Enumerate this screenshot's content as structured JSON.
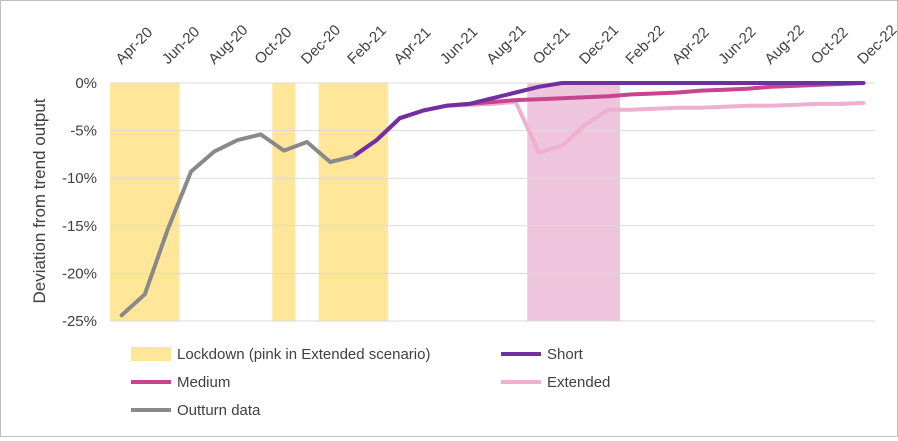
{
  "chart_data": {
    "type": "line",
    "title": "",
    "xlabel": "",
    "ylabel": "Deviation from trend output",
    "ylim": [
      -25,
      0
    ],
    "y_ticks": [
      "0%",
      "-5%",
      "-10%",
      "-15%",
      "-20%",
      "-25%"
    ],
    "x": [
      "Apr-20",
      "May-20",
      "Jun-20",
      "Jul-20",
      "Aug-20",
      "Sep-20",
      "Oct-20",
      "Nov-20",
      "Dec-20",
      "Jan-21",
      "Feb-21",
      "Mar-21",
      "Apr-21",
      "May-21",
      "Jun-21",
      "Jul-21",
      "Aug-21",
      "Sep-21",
      "Oct-21",
      "Nov-21",
      "Dec-21",
      "Jan-22",
      "Feb-22",
      "Mar-22",
      "Apr-22",
      "May-22",
      "Jun-22",
      "Jul-22",
      "Aug-22",
      "Sep-22",
      "Oct-22",
      "Nov-22",
      "Dec-22"
    ],
    "x_tick_labels": [
      "Apr-20",
      "Jun-20",
      "Aug-20",
      "Oct-20",
      "Dec-20",
      "Feb-21",
      "Apr-21",
      "Jun-21",
      "Aug-21",
      "Oct-21",
      "Dec-21",
      "Feb-22",
      "Apr-22",
      "Jun-22",
      "Aug-22",
      "Oct-22",
      "Dec-22"
    ],
    "shaded_periods": [
      {
        "from": "Apr-20",
        "to": "Jun-20",
        "color": "#ffe699"
      },
      {
        "from": "Nov-20",
        "to": "Nov-20",
        "color": "#ffe699"
      },
      {
        "from": "Jan-21",
        "to": "Mar-21",
        "color": "#ffe699"
      },
      {
        "from": "Oct-21",
        "to": "Jan-22",
        "color": "#eec5dc"
      }
    ],
    "series": [
      {
        "name": "Short",
        "color": "#7030a0",
        "values": [
          null,
          null,
          null,
          null,
          null,
          null,
          null,
          null,
          null,
          null,
          -7.7,
          -6.0,
          -3.7,
          -2.9,
          -2.4,
          -2.2,
          -1.6,
          -1.0,
          -0.4,
          0,
          0,
          0,
          0,
          0,
          0,
          0,
          0,
          0,
          0,
          0,
          0,
          0,
          0
        ]
      },
      {
        "name": "Medium",
        "color": "#c9438f",
        "values": [
          null,
          null,
          null,
          null,
          null,
          null,
          null,
          null,
          null,
          null,
          -7.7,
          -6.0,
          -3.7,
          -2.9,
          -2.4,
          -2.2,
          -2.0,
          -1.8,
          -1.7,
          -1.6,
          -1.5,
          -1.4,
          -1.2,
          -1.1,
          -1.0,
          -0.8,
          -0.7,
          -0.6,
          -0.4,
          -0.3,
          -0.2,
          -0.1,
          0
        ]
      },
      {
        "name": "Extended",
        "color": "#eeb0cf",
        "values": [
          null,
          null,
          null,
          null,
          null,
          null,
          null,
          null,
          null,
          null,
          -7.7,
          -6.0,
          -3.7,
          -2.9,
          -2.4,
          -2.3,
          -2.2,
          -2.0,
          -7.3,
          -6.6,
          -4.4,
          -2.8,
          -2.8,
          -2.7,
          -2.6,
          -2.6,
          -2.5,
          -2.4,
          -2.4,
          -2.3,
          -2.2,
          -2.2,
          -2.1
        ]
      },
      {
        "name": "Outturn data",
        "color": "#898989",
        "values": [
          -24.4,
          -22.2,
          -15.3,
          -9.3,
          -7.2,
          -6.0,
          -5.4,
          -7.1,
          -6.2,
          -8.3,
          -7.7,
          null,
          null,
          null,
          null,
          null,
          null,
          null,
          null,
          null,
          null,
          null,
          null,
          null,
          null,
          null,
          null,
          null,
          null,
          null,
          null,
          null,
          null
        ]
      }
    ],
    "legend": [
      {
        "label": "Lockdown (pink in Extended scenario)",
        "color": "#ffe699",
        "kind": "area"
      },
      {
        "label": "Short",
        "color": "#7030a0",
        "kind": "line"
      },
      {
        "label": "Medium",
        "color": "#c9438f",
        "kind": "line"
      },
      {
        "label": "Extended",
        "color": "#eeb0cf",
        "kind": "line"
      },
      {
        "label": "Outturn data",
        "color": "#898989",
        "kind": "line"
      }
    ],
    "legend_position": "bottom",
    "grid": true
  }
}
